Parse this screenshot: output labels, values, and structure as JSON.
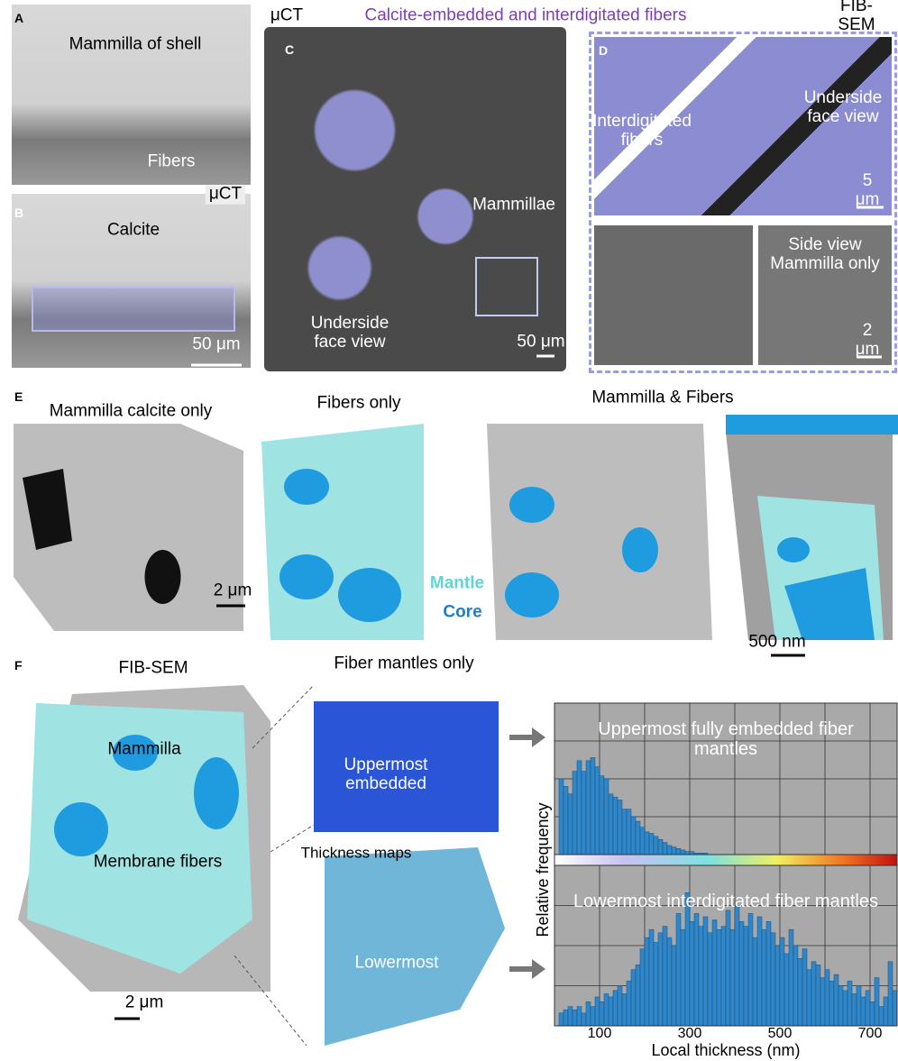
{
  "figure_title": "Calcite-embedded and interdigitated fibers",
  "panel_a": {
    "label": "A",
    "heading": "Mammilla of shell",
    "fibers": "Fibers"
  },
  "panel_b": {
    "label": "B",
    "calcite": "Calcite",
    "method": "μCT",
    "scale": "50 μm"
  },
  "panel_c": {
    "label": "C",
    "method": "μCT",
    "mammillae": "Mammillae",
    "view": "Underside face view",
    "scale": "50 μm"
  },
  "panel_d": {
    "label": "D",
    "method": "FIB-SEM",
    "view": "Underside face view",
    "fibers": "Interdigitated fibers",
    "scale": "5 μm",
    "side_view": "Side view Mammilla only",
    "scale_side": "2 μm"
  },
  "panel_e": {
    "label": "E",
    "calcite_only": "Mammilla calcite only",
    "fibers_only": "Fibers only",
    "both": "Mammilla & Fibers",
    "scale": "2 μm",
    "mantle": "Mantle",
    "core": "Core",
    "scale_zoom": "500 nm"
  },
  "panel_f": {
    "label": "F",
    "method": "FIB-SEM",
    "mantles_only": "Fiber mantles only",
    "mammilla": "Mammilla",
    "membrane": "Membrane fibers",
    "scale": "2 μm",
    "uppermost": "Uppermost embedded",
    "thickness": "Thickness maps",
    "lowermost": "Lowermost"
  },
  "chart_data": {
    "type": "histogram",
    "xlabel": "Local thickness (nm)",
    "ylabel": "Relative frequency",
    "xlim": [
      0,
      760
    ],
    "xticks": [
      100,
      300,
      500,
      700
    ],
    "minor_xticks": [
      200,
      400,
      600
    ],
    "ylim": [
      0,
      100
    ],
    "ygrid": [
      25,
      50,
      75
    ],
    "color": "#2f86c8",
    "panels": [
      {
        "title": "Uppermost fully embedded fiber mantles",
        "bins": [
          10,
          20,
          30,
          40,
          50,
          60,
          70,
          80,
          90,
          100,
          110,
          120,
          130,
          140,
          150,
          160,
          170,
          180,
          190,
          200,
          210,
          220,
          230,
          240,
          250,
          260,
          270,
          280,
          290,
          300,
          310,
          320,
          330,
          340
        ],
        "values": [
          50,
          45,
          40,
          55,
          62,
          55,
          62,
          64,
          58,
          52,
          50,
          40,
          38,
          36,
          30,
          30,
          25,
          22,
          18,
          15,
          14,
          12,
          10,
          8,
          6,
          5,
          4,
          3,
          2,
          2,
          1,
          1,
          1
        ]
      },
      {
        "title": "Lowermost interdigitated fiber mantles",
        "bins": [
          10,
          20,
          30,
          40,
          50,
          60,
          70,
          80,
          90,
          100,
          110,
          120,
          130,
          140,
          150,
          160,
          170,
          180,
          190,
          200,
          210,
          220,
          230,
          240,
          250,
          260,
          270,
          280,
          290,
          300,
          310,
          320,
          330,
          340,
          350,
          360,
          370,
          380,
          390,
          400,
          410,
          420,
          430,
          440,
          450,
          460,
          470,
          480,
          490,
          500,
          510,
          520,
          530,
          540,
          550,
          560,
          570,
          580,
          590,
          600,
          610,
          620,
          630,
          640,
          650,
          660,
          670,
          680,
          690,
          700,
          710,
          720,
          730,
          740,
          750,
          760
        ],
        "values": [
          8,
          10,
          12,
          10,
          12,
          8,
          15,
          12,
          18,
          15,
          20,
          18,
          22,
          25,
          20,
          28,
          35,
          38,
          48,
          55,
          60,
          52,
          58,
          62,
          55,
          50,
          70,
          60,
          83,
          65,
          70,
          62,
          68,
          58,
          66,
          60,
          62,
          72,
          60,
          75,
          65,
          62,
          70,
          55,
          68,
          60,
          65,
          58,
          50,
          55,
          45,
          60,
          50,
          42,
          48,
          35,
          40,
          38,
          30,
          35,
          28,
          32,
          25,
          22,
          28,
          20,
          25,
          18,
          22,
          15,
          30,
          12,
          18,
          40,
          22
        ]
      }
    ]
  }
}
